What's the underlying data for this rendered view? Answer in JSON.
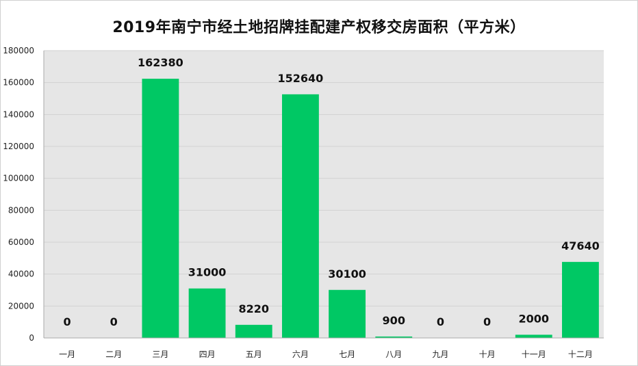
{
  "chart_data": {
    "type": "bar",
    "title": "2019年南宁市经土地招牌挂配建产权移交房面积（平方米）",
    "categories": [
      "一月",
      "二月",
      "三月",
      "四月",
      "五月",
      "六月",
      "七月",
      "八月",
      "九月",
      "十月",
      "十一月",
      "十二月"
    ],
    "values": [
      0,
      0,
      162380,
      31000,
      8220,
      152640,
      30100,
      900,
      0,
      0,
      2000,
      47640
    ],
    "data_labels": [
      "0",
      "0",
      "162380",
      "31000",
      "8220",
      "152640",
      "30100",
      "900",
      "0",
      "0",
      "2000",
      "47640"
    ],
    "ylim": [
      0,
      180000
    ],
    "yticks": [
      0,
      20000,
      40000,
      60000,
      80000,
      100000,
      120000,
      140000,
      160000,
      180000
    ],
    "ytick_labels": [
      "0",
      "20000",
      "40000",
      "60000",
      "80000",
      "100000",
      "120000",
      "140000",
      "160000",
      "180000"
    ],
    "grid": true,
    "legend": "none",
    "colors": {
      "bar": "#00c864",
      "plot_background": "#e6e6e6",
      "gridline": "#d2d2d2",
      "axis": "#aaaaaa"
    }
  }
}
